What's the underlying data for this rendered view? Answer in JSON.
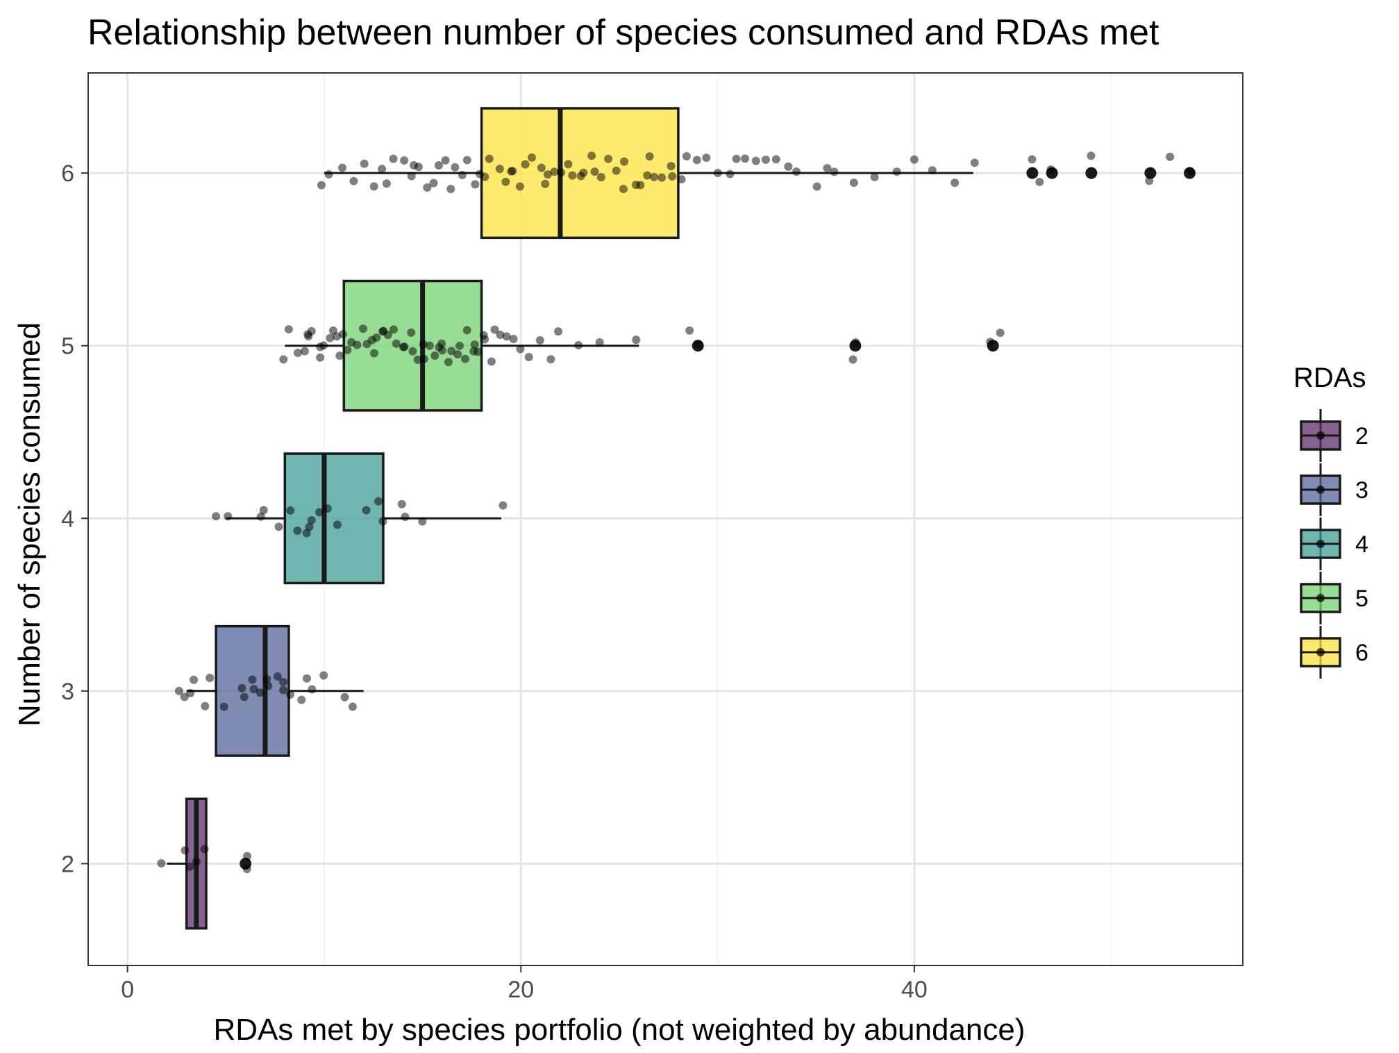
{
  "chart_data": {
    "type": "boxplot",
    "orientation": "horizontal",
    "title": "Relationship between number of species consumed and RDAs met",
    "xlabel": "RDAs met by species portfolio (not weighted by abundance)",
    "ylabel": "Number of species consumed",
    "xlim": [
      -2,
      56.7
    ],
    "ylim": [
      1.41,
      6.58
    ],
    "x_ticks": [
      0,
      20,
      40
    ],
    "y_ticks": [
      2,
      3,
      4,
      5,
      6
    ],
    "grid": true,
    "legend": {
      "title": "RDAs",
      "placement": "right",
      "entries": [
        "2",
        "3",
        "4",
        "5",
        "6"
      ]
    },
    "colors": {
      "2": "#5c2d6a",
      "3": "#56659b",
      "4": "#3f9c95",
      "5": "#74d16f",
      "6": "#fde43e",
      "box_alpha": 0.75,
      "outline": "#1a1a1a",
      "point": "#000000",
      "grid": "#e5e5e5",
      "axis_text": "#4d4d4d"
    },
    "boxes": [
      {
        "group": "2",
        "y": 2,
        "whisker_low": 2.0,
        "q1": 3.0,
        "median": 3.5,
        "q3": 4.0,
        "whisker_high": 4.0,
        "outliers": [
          6.0
        ]
      },
      {
        "group": "3",
        "y": 3,
        "whisker_low": 3.0,
        "q1": 4.5,
        "median": 7.0,
        "q3": 8.2,
        "whisker_high": 12.0,
        "outliers": []
      },
      {
        "group": "4",
        "y": 4,
        "whisker_low": 5.0,
        "q1": 8.0,
        "median": 10.0,
        "q3": 13.0,
        "whisker_high": 19.0,
        "outliers": []
      },
      {
        "group": "5",
        "y": 5,
        "whisker_low": 8.0,
        "q1": 11.0,
        "median": 15.0,
        "q3": 18.0,
        "whisker_high": 26.0,
        "outliers": [
          29.0,
          37.0,
          44.0
        ]
      },
      {
        "group": "6",
        "y": 6,
        "whisker_low": 10.0,
        "q1": 18.0,
        "median": 22.0,
        "q3": 28.0,
        "whisker_high": 43.0,
        "outliers": [
          46.0,
          47.0,
          49.0,
          52.0,
          54.0
        ]
      }
    ],
    "points": [
      {
        "group": "2",
        "x": [
          1.7,
          3.0,
          3.5,
          3.8,
          3.2,
          6.0,
          6.2
        ]
      },
      {
        "group": "3",
        "x": [
          2.7,
          3.0,
          3.2,
          3.5,
          3.8,
          4.2,
          5.0,
          5.8,
          6.0,
          6.2,
          6.5,
          6.8,
          7.0,
          7.2,
          7.5,
          7.8,
          8.0,
          8.3,
          8.8,
          9.2,
          9.5,
          10.0,
          11.0,
          11.5
        ]
      },
      {
        "group": "4",
        "x": [
          4.5,
          5.0,
          6.8,
          7.0,
          7.8,
          8.2,
          8.5,
          9.0,
          9.2,
          9.5,
          9.8,
          10.2,
          10.6,
          12.0,
          12.8,
          13.0,
          13.8,
          14.0,
          15.0,
          19.0
        ]
      },
      {
        "group": "5",
        "x": [
          8.0,
          8.3,
          8.6,
          8.9,
          9.1,
          9.3,
          9.5,
          9.7,
          9.9,
          10.1,
          10.3,
          10.5,
          10.7,
          10.9,
          11.1,
          11.3,
          11.5,
          11.7,
          11.9,
          12.1,
          12.3,
          12.5,
          12.7,
          12.9,
          13.1,
          13.3,
          13.5,
          13.7,
          13.9,
          14.1,
          14.3,
          14.5,
          14.7,
          14.9,
          15.1,
          15.3,
          15.5,
          15.7,
          15.9,
          16.1,
          16.3,
          16.5,
          16.7,
          16.9,
          17.1,
          17.3,
          17.5,
          17.7,
          17.9,
          18.1,
          18.3,
          18.5,
          18.7,
          18.9,
          19.2,
          19.5,
          20.0,
          20.5,
          21.0,
          21.5,
          22.0,
          23.0,
          24.0,
          26.0,
          28.5,
          29.0,
          37.0,
          37.1,
          44.0,
          44.3
        ]
      },
      {
        "group": "6",
        "x": [
          10.0,
          10.3,
          11.0,
          11.5,
          12.0,
          12.4,
          12.8,
          13.2,
          13.6,
          14.0,
          14.3,
          14.6,
          14.9,
          15.2,
          15.5,
          15.8,
          16.1,
          16.4,
          16.7,
          17.0,
          17.3,
          17.6,
          17.9,
          18.2,
          18.5,
          18.8,
          19.1,
          19.4,
          19.7,
          20.0,
          20.3,
          20.6,
          20.9,
          21.2,
          21.5,
          21.8,
          22.1,
          22.4,
          22.7,
          23.0,
          23.3,
          23.6,
          23.9,
          24.2,
          24.5,
          24.8,
          25.1,
          25.4,
          25.7,
          26.0,
          26.3,
          26.6,
          26.9,
          27.2,
          27.5,
          27.8,
          28.1,
          28.5,
          29.0,
          29.5,
          30.0,
          30.5,
          31.0,
          31.5,
          32.0,
          32.5,
          33.0,
          33.5,
          34.0,
          35.0,
          35.5,
          36.0,
          37.0,
          38.0,
          39.0,
          40.0,
          41.0,
          42.0,
          43.0,
          46.0,
          46.5,
          47.0,
          49.0,
          52.0,
          53.0,
          54.0
        ]
      }
    ]
  }
}
